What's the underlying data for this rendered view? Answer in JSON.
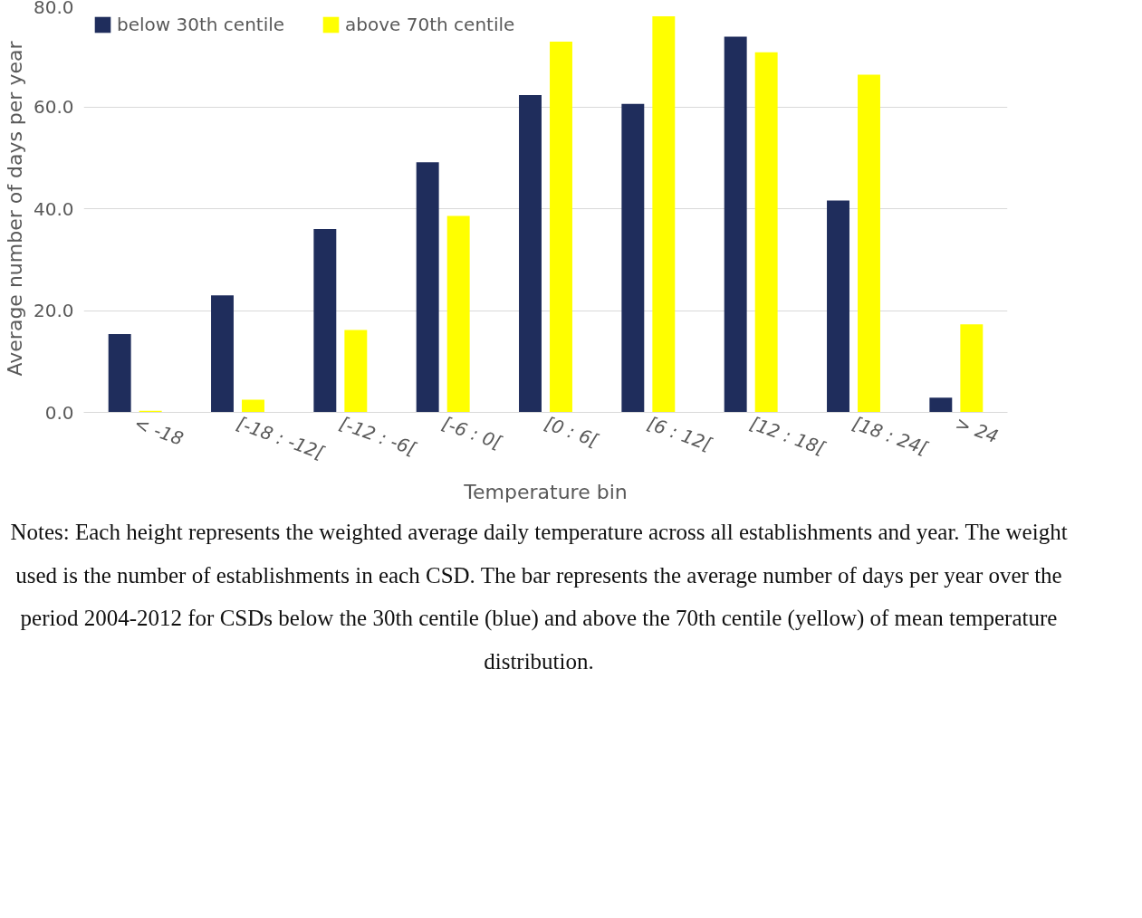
{
  "chart_data": {
    "type": "bar",
    "xlabel": "Temperature bin",
    "ylabel": "Average number of days per year",
    "categories": [
      "< -18",
      "[-18 : -12[",
      "[-12 : -6[",
      "[-6 : 0[",
      "[0 : 6[",
      "[6 : 12[",
      "[12 : 18[",
      "[18 : 24[",
      "> 24"
    ],
    "series": [
      {
        "name": "below 30th centile",
        "color": "#1f2d5c",
        "values": [
          15.4,
          23.0,
          36.0,
          49.1,
          62.3,
          60.6,
          73.8,
          41.6,
          2.9
        ]
      },
      {
        "name": "above 70th centile",
        "color": "#ffff00",
        "values": [
          0.3,
          2.5,
          16.2,
          38.6,
          72.8,
          77.8,
          70.7,
          66.3,
          17.3
        ]
      }
    ],
    "ylim": [
      0,
      80
    ],
    "yticks": [
      {
        "value": 0,
        "label": "0.0"
      },
      {
        "value": 20,
        "label": "20.0"
      },
      {
        "value": 40,
        "label": "40.0"
      },
      {
        "value": 60,
        "label": "60.0"
      },
      {
        "value": 80,
        "label": "80.0"
      }
    ],
    "grid": "y",
    "legend": "top left",
    "annotations": [
      "Notes: Each height represents the weighted average daily temperature across all establishments and year. The weight used is the number of establishments in each CSD. The bar represents the average number of days per year over the period 2004-2012 for CSDs below the 30th centile (blue) and above the 70th centile (yellow) of mean temperature distribution."
    ]
  }
}
